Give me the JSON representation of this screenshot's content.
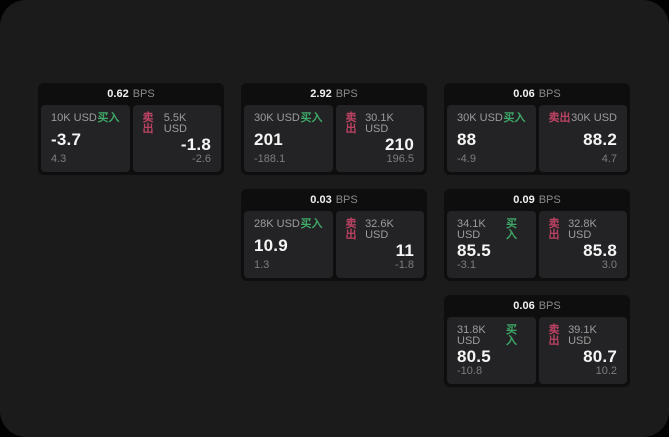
{
  "labels": {
    "bps": "BPS",
    "buy": "买入",
    "sell": "卖出"
  },
  "colors": {
    "buy_accent": "#3fa868",
    "sell_accent": "#bc4263",
    "panel_bg": "#1b1b1b",
    "card_bg": "#0e0e0e",
    "tile_bg": "#232325"
  },
  "cards": [
    {
      "bps": "0.62",
      "buy": {
        "notional": "10K USD",
        "value": "-3.7",
        "sub": "4.3"
      },
      "sell": {
        "notional": "5.5K USD",
        "value": "-1.8",
        "sub": "-2.6"
      }
    },
    {
      "bps": "2.92",
      "buy": {
        "notional": "30K USD",
        "value": "201",
        "sub": "-188.1"
      },
      "sell": {
        "notional": "30.1K USD",
        "value": "210",
        "sub": "196.5"
      }
    },
    {
      "bps": "0.06",
      "buy": {
        "notional": "30K USD",
        "value": "88",
        "sub": "-4.9"
      },
      "sell": {
        "notional": "30K USD",
        "value": "88.2",
        "sub": "4.7"
      }
    },
    {
      "bps": "0.03",
      "buy": {
        "notional": "28K USD",
        "value": "10.9",
        "sub": "1.3"
      },
      "sell": {
        "notional": "32.6K USD",
        "value": "11",
        "sub": "-1.8"
      }
    },
    {
      "bps": "0.09",
      "buy": {
        "notional": "34.1K USD",
        "value": "85.5",
        "sub": "-3.1"
      },
      "sell": {
        "notional": "32.8K USD",
        "value": "85.8",
        "sub": "3.0"
      }
    },
    {
      "bps": "0.06",
      "buy": {
        "notional": "31.8K USD",
        "value": "80.5",
        "sub": "-10.8"
      },
      "sell": {
        "notional": "39.1K USD",
        "value": "80.7",
        "sub": "10.2"
      }
    }
  ]
}
